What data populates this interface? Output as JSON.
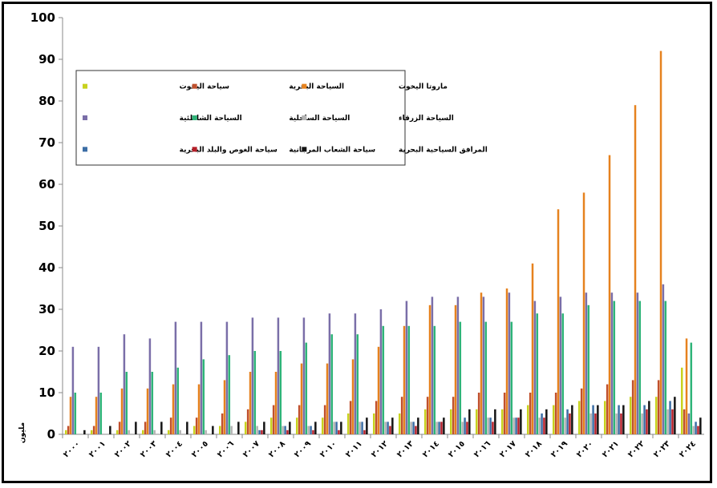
{
  "chart_data": {
    "type": "bar",
    "title": "",
    "xlabel": "",
    "ylabel": "مليون",
    "ylim": [
      0,
      100
    ],
    "yticks": [
      0,
      10,
      20,
      30,
      40,
      50,
      60,
      70,
      80,
      90,
      100
    ],
    "grid": false,
    "legend_position": "top-left (inside plot)",
    "categories": [
      "٢٠٠٠",
      "٢٠٠١",
      "٢٠٠٢",
      "٢٠٠٣",
      "٢٠٠٤",
      "٢٠٠٥",
      "٢٠٠٦",
      "٢٠٠٧",
      "٢٠٠٨",
      "٢٠٠٩",
      "٢٠١٠",
      "٢٠١١",
      "٢٠١٢",
      "٢٠١٣",
      "٢٠١٤",
      "٢٠١٥",
      "٢٠١٦",
      "٢٠١٧",
      "٢٠١٨",
      "٢٠١٩",
      "٢٠٢٠",
      "٢٠٢١",
      "٢٠٢٢",
      "٢٠٢٣",
      "٢٠٢٤"
    ],
    "series": [
      {
        "name": "سياحة اليخوت",
        "color": "#c8d21e",
        "values": [
          1,
          1,
          1,
          1,
          1,
          2,
          2,
          3,
          4,
          4,
          4,
          5,
          5,
          5,
          6,
          6,
          6,
          6,
          7,
          7,
          8,
          8,
          9,
          9,
          16
        ]
      },
      {
        "name": "السياحة البحرية",
        "color": "#c0502d",
        "values": [
          2,
          2,
          3,
          3,
          4,
          4,
          5,
          6,
          7,
          7,
          7,
          8,
          8,
          9,
          9,
          9,
          10,
          10,
          10,
          10,
          11,
          12,
          13,
          13,
          6
        ]
      },
      {
        "name": "ماروتا اليخوت",
        "color": "#e6821e",
        "values": [
          9,
          9,
          11,
          11,
          12,
          12,
          13,
          15,
          15,
          17,
          17,
          18,
          21,
          26,
          31,
          31,
          34,
          35,
          41,
          54,
          58,
          67,
          79,
          92,
          23
        ]
      },
      {
        "name": "السياحة الشاطئية",
        "color": "#7a6ea8",
        "values": [
          21,
          21,
          24,
          23,
          27,
          27,
          27,
          28,
          28,
          28,
          29,
          29,
          30,
          32,
          33,
          33,
          33,
          34,
          32,
          33,
          34,
          34,
          34,
          36,
          5
        ]
      },
      {
        "name": "السياحة الساحلية",
        "color": "#2eb478",
        "values": [
          10,
          10,
          15,
          15,
          16,
          18,
          19,
          20,
          20,
          22,
          24,
          24,
          26,
          26,
          26,
          27,
          27,
          27,
          29,
          29,
          31,
          32,
          32,
          32,
          22
        ]
      },
      {
        "name": "السياحة الزرقاء",
        "color": "#b4b4b4",
        "values": [
          0,
          0,
          1,
          1,
          1,
          1,
          2,
          2,
          2,
          2,
          3,
          3,
          3,
          3,
          3,
          3,
          4,
          4,
          4,
          4,
          5,
          5,
          5,
          6,
          2
        ]
      },
      {
        "name": "سياحة الغوص والبلد البحرية",
        "color": "#3c6ea5",
        "values": [
          0,
          0,
          0,
          0,
          0,
          0,
          0,
          1,
          2,
          2,
          3,
          3,
          3,
          3,
          3,
          4,
          4,
          4,
          5,
          6,
          7,
          7,
          7,
          8,
          3
        ]
      },
      {
        "name": "سياحة الشعاب المرجانية",
        "color": "#b41e28",
        "values": [
          0,
          0,
          0,
          0,
          0,
          0,
          0,
          1,
          1,
          1,
          1,
          1,
          2,
          2,
          3,
          3,
          3,
          4,
          4,
          5,
          5,
          5,
          6,
          6,
          2
        ]
      },
      {
        "name": "المرافق السياحية البحرية",
        "color": "#141414",
        "values": [
          1,
          2,
          3,
          3,
          3,
          2,
          3,
          3,
          3,
          3,
          3,
          4,
          4,
          4,
          4,
          6,
          6,
          6,
          6,
          7,
          7,
          7,
          8,
          9,
          4
        ]
      }
    ]
  }
}
